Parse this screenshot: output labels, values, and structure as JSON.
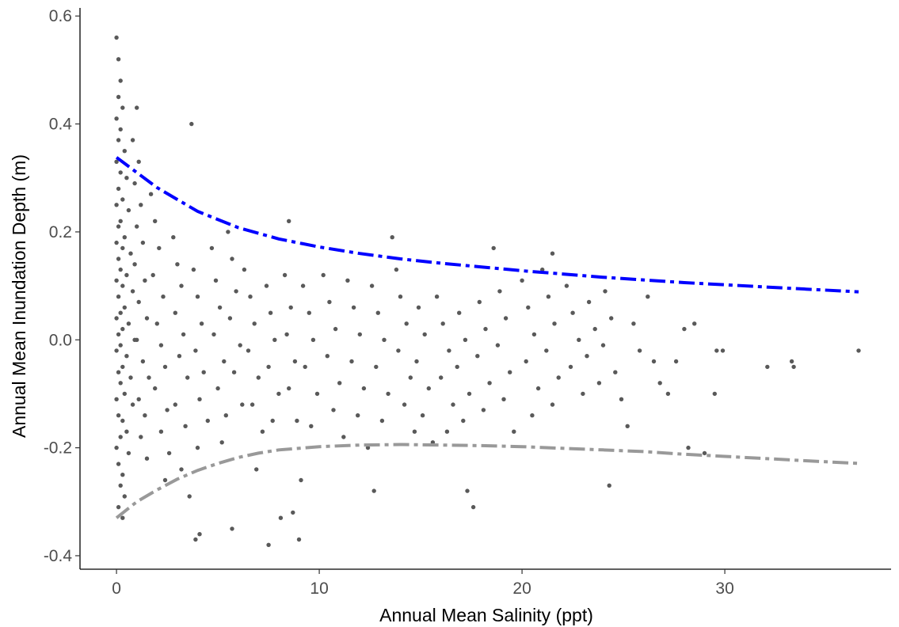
{
  "chart_data": {
    "type": "scatter",
    "xlabel": "Annual Mean Salinity (ppt)",
    "ylabel": "Annual Mean Inundation Depth (m)",
    "xlim": [
      -1.8,
      38.2
    ],
    "ylim": [
      -0.425,
      0.615
    ],
    "x_ticks": [
      0,
      10,
      20,
      30
    ],
    "x_tick_labels": [
      "0",
      "10",
      "20",
      "30"
    ],
    "y_ticks": [
      -0.4,
      -0.2,
      0.0,
      0.2,
      0.4,
      0.6
    ],
    "y_tick_labels": [
      "-0.4",
      "-0.2",
      "0.0",
      "0.2",
      "0.4",
      "0.6"
    ],
    "grid": false,
    "legend": "none",
    "point_color": "#595959",
    "points": [
      [
        0.0,
        0.56
      ],
      [
        0.1,
        0.52
      ],
      [
        0.2,
        0.48
      ],
      [
        0.1,
        0.45
      ],
      [
        0.3,
        0.43
      ],
      [
        0.0,
        0.41
      ],
      [
        0.2,
        0.39
      ],
      [
        0.1,
        0.37
      ],
      [
        0.4,
        0.35
      ],
      [
        0.0,
        0.33
      ],
      [
        0.2,
        0.31
      ],
      [
        0.5,
        0.3
      ],
      [
        0.1,
        0.28
      ],
      [
        0.3,
        0.26
      ],
      [
        0.0,
        0.25
      ],
      [
        0.6,
        0.24
      ],
      [
        0.2,
        0.22
      ],
      [
        0.1,
        0.21
      ],
      [
        0.4,
        0.19
      ],
      [
        0.0,
        0.18
      ],
      [
        0.3,
        0.17
      ],
      [
        0.7,
        0.16
      ],
      [
        0.1,
        0.15
      ],
      [
        0.2,
        0.13
      ],
      [
        0.5,
        0.12
      ],
      [
        0.0,
        0.11
      ],
      [
        0.3,
        0.1
      ],
      [
        0.8,
        0.09
      ],
      [
        0.1,
        0.08
      ],
      [
        0.4,
        0.06
      ],
      [
        0.2,
        0.05
      ],
      [
        0.0,
        0.04
      ],
      [
        0.6,
        0.03
      ],
      [
        0.3,
        0.02
      ],
      [
        0.1,
        0.01
      ],
      [
        0.9,
        0.0
      ],
      [
        0.2,
        -0.01
      ],
      [
        0.0,
        -0.02
      ],
      [
        0.5,
        -0.03
      ],
      [
        0.3,
        -0.05
      ],
      [
        0.1,
        -0.06
      ],
      [
        0.7,
        -0.07
      ],
      [
        0.2,
        -0.08
      ],
      [
        0.4,
        -0.1
      ],
      [
        0.0,
        -0.11
      ],
      [
        0.8,
        -0.12
      ],
      [
        0.1,
        -0.14
      ],
      [
        0.3,
        -0.15
      ],
      [
        0.5,
        -0.17
      ],
      [
        0.2,
        -0.18
      ],
      [
        0.0,
        -0.2
      ],
      [
        0.6,
        -0.21
      ],
      [
        0.1,
        -0.23
      ],
      [
        0.3,
        -0.25
      ],
      [
        0.2,
        -0.27
      ],
      [
        0.4,
        -0.29
      ],
      [
        0.1,
        -0.31
      ],
      [
        0.3,
        -0.33
      ],
      [
        1.0,
        0.43
      ],
      [
        0.8,
        0.37
      ],
      [
        1.1,
        0.33
      ],
      [
        0.9,
        0.29
      ],
      [
        1.2,
        0.25
      ],
      [
        1.0,
        0.21
      ],
      [
        1.3,
        0.18
      ],
      [
        0.9,
        0.14
      ],
      [
        1.4,
        0.11
      ],
      [
        1.1,
        0.07
      ],
      [
        1.5,
        0.04
      ],
      [
        1.0,
        0.0
      ],
      [
        1.3,
        -0.04
      ],
      [
        1.6,
        -0.07
      ],
      [
        1.1,
        -0.11
      ],
      [
        1.4,
        -0.14
      ],
      [
        1.2,
        -0.18
      ],
      [
        1.5,
        -0.22
      ],
      [
        1.7,
        0.27
      ],
      [
        1.9,
        0.22
      ],
      [
        2.1,
        0.17
      ],
      [
        1.8,
        0.12
      ],
      [
        2.3,
        0.08
      ],
      [
        2.0,
        0.03
      ],
      [
        2.2,
        -0.01
      ],
      [
        2.4,
        -0.05
      ],
      [
        1.9,
        -0.09
      ],
      [
        2.5,
        -0.13
      ],
      [
        2.2,
        -0.17
      ],
      [
        2.6,
        -0.21
      ],
      [
        2.4,
        -0.26
      ],
      [
        2.8,
        0.19
      ],
      [
        3.0,
        0.14
      ],
      [
        3.2,
        0.1
      ],
      [
        2.9,
        0.05
      ],
      [
        3.3,
        0.01
      ],
      [
        3.1,
        -0.03
      ],
      [
        3.5,
        -0.07
      ],
      [
        2.9,
        -0.12
      ],
      [
        3.4,
        -0.16
      ],
      [
        3.2,
        -0.24
      ],
      [
        3.6,
        -0.29
      ],
      [
        3.7,
        0.4
      ],
      [
        3.8,
        0.13
      ],
      [
        4.0,
        0.08
      ],
      [
        4.2,
        0.03
      ],
      [
        3.9,
        -0.02
      ],
      [
        4.3,
        -0.06
      ],
      [
        4.1,
        -0.11
      ],
      [
        4.5,
        -0.15
      ],
      [
        4.0,
        -0.2
      ],
      [
        3.9,
        -0.37
      ],
      [
        4.1,
        -0.36
      ],
      [
        4.7,
        0.17
      ],
      [
        4.9,
        0.11
      ],
      [
        5.1,
        0.06
      ],
      [
        4.8,
        0.01
      ],
      [
        5.3,
        -0.04
      ],
      [
        5.0,
        -0.09
      ],
      [
        5.4,
        -0.14
      ],
      [
        5.2,
        -0.19
      ],
      [
        5.5,
        0.2
      ],
      [
        5.7,
        0.15
      ],
      [
        5.9,
        0.09
      ],
      [
        5.6,
        0.04
      ],
      [
        6.1,
        -0.01
      ],
      [
        5.8,
        -0.06
      ],
      [
        6.2,
        -0.12
      ],
      [
        5.7,
        -0.35
      ],
      [
        6.3,
        0.13
      ],
      [
        6.6,
        0.08
      ],
      [
        6.8,
        0.03
      ],
      [
        6.5,
        -0.02
      ],
      [
        7.0,
        -0.07
      ],
      [
        6.7,
        -0.12
      ],
      [
        7.2,
        -0.17
      ],
      [
        6.9,
        -0.24
      ],
      [
        7.4,
        0.1
      ],
      [
        7.6,
        0.05
      ],
      [
        7.8,
        0.0
      ],
      [
        7.5,
        -0.05
      ],
      [
        8.0,
        -0.1
      ],
      [
        7.7,
        -0.15
      ],
      [
        7.5,
        -0.38
      ],
      [
        8.1,
        -0.33
      ],
      [
        8.5,
        0.22
      ],
      [
        8.3,
        0.12
      ],
      [
        8.6,
        0.06
      ],
      [
        8.4,
        0.01
      ],
      [
        8.8,
        -0.04
      ],
      [
        8.5,
        -0.09
      ],
      [
        8.9,
        -0.15
      ],
      [
        8.7,
        -0.32
      ],
      [
        9.0,
        -0.37
      ],
      [
        9.2,
        0.1
      ],
      [
        9.5,
        0.05
      ],
      [
        9.7,
        0.0
      ],
      [
        9.3,
        -0.05
      ],
      [
        9.9,
        -0.1
      ],
      [
        9.6,
        -0.16
      ],
      [
        9.1,
        -0.26
      ],
      [
        10.2,
        0.12
      ],
      [
        10.5,
        0.07
      ],
      [
        10.8,
        0.02
      ],
      [
        10.4,
        -0.03
      ],
      [
        11.0,
        -0.08
      ],
      [
        10.7,
        -0.13
      ],
      [
        11.2,
        -0.18
      ],
      [
        11.4,
        0.11
      ],
      [
        11.7,
        0.06
      ],
      [
        12.0,
        0.01
      ],
      [
        11.6,
        -0.04
      ],
      [
        12.2,
        -0.09
      ],
      [
        11.9,
        -0.14
      ],
      [
        12.4,
        -0.2
      ],
      [
        12.7,
        -0.28
      ],
      [
        12.6,
        0.1
      ],
      [
        12.9,
        0.05
      ],
      [
        13.2,
        0.0
      ],
      [
        12.8,
        -0.05
      ],
      [
        13.4,
        -0.1
      ],
      [
        13.1,
        -0.15
      ],
      [
        13.6,
        0.19
      ],
      [
        13.8,
        0.13
      ],
      [
        14.0,
        0.08
      ],
      [
        14.3,
        0.03
      ],
      [
        13.9,
        -0.02
      ],
      [
        14.5,
        -0.07
      ],
      [
        14.2,
        -0.12
      ],
      [
        14.7,
        -0.17
      ],
      [
        14.9,
        0.06
      ],
      [
        15.2,
        0.01
      ],
      [
        14.8,
        -0.04
      ],
      [
        15.4,
        -0.09
      ],
      [
        15.1,
        -0.14
      ],
      [
        15.6,
        -0.19
      ],
      [
        15.8,
        0.08
      ],
      [
        16.1,
        0.03
      ],
      [
        16.4,
        -0.02
      ],
      [
        16.0,
        -0.07
      ],
      [
        16.6,
        -0.12
      ],
      [
        16.3,
        -0.17
      ],
      [
        16.9,
        0.05
      ],
      [
        17.2,
        0.0
      ],
      [
        16.8,
        -0.05
      ],
      [
        17.4,
        -0.1
      ],
      [
        17.1,
        -0.15
      ],
      [
        17.3,
        -0.28
      ],
      [
        17.6,
        -0.31
      ],
      [
        17.9,
        0.07
      ],
      [
        18.2,
        0.02
      ],
      [
        17.8,
        -0.03
      ],
      [
        18.4,
        -0.08
      ],
      [
        18.1,
        -0.13
      ],
      [
        18.6,
        0.17
      ],
      [
        18.9,
        0.09
      ],
      [
        19.2,
        0.04
      ],
      [
        18.8,
        -0.01
      ],
      [
        19.4,
        -0.06
      ],
      [
        19.1,
        -0.11
      ],
      [
        19.6,
        -0.17
      ],
      [
        20.0,
        0.11
      ],
      [
        20.3,
        0.06
      ],
      [
        20.6,
        0.01
      ],
      [
        20.2,
        -0.04
      ],
      [
        20.8,
        -0.09
      ],
      [
        20.5,
        -0.14
      ],
      [
        21.0,
        0.13
      ],
      [
        21.3,
        0.08
      ],
      [
        21.6,
        0.03
      ],
      [
        21.2,
        -0.02
      ],
      [
        21.8,
        -0.07
      ],
      [
        21.5,
        -0.12
      ],
      [
        21.5,
        0.16
      ],
      [
        22.2,
        0.1
      ],
      [
        22.5,
        0.05
      ],
      [
        22.8,
        0.0
      ],
      [
        22.4,
        -0.05
      ],
      [
        23.0,
        -0.1
      ],
      [
        23.3,
        0.07
      ],
      [
        23.6,
        0.02
      ],
      [
        23.2,
        -0.03
      ],
      [
        23.8,
        -0.08
      ],
      [
        24.1,
        0.09
      ],
      [
        24.4,
        0.04
      ],
      [
        24.0,
        -0.01
      ],
      [
        24.6,
        -0.06
      ],
      [
        24.3,
        -0.27
      ],
      [
        24.9,
        -0.11
      ],
      [
        25.2,
        -0.16
      ],
      [
        25.5,
        0.03
      ],
      [
        25.8,
        -0.02
      ],
      [
        26.2,
        0.08
      ],
      [
        26.5,
        -0.04
      ],
      [
        26.8,
        -0.08
      ],
      [
        27.2,
        -0.1
      ],
      [
        27.6,
        -0.04
      ],
      [
        28.0,
        0.02
      ],
      [
        28.5,
        0.03
      ],
      [
        28.2,
        -0.2
      ],
      [
        29.0,
        -0.21
      ],
      [
        29.6,
        -0.02
      ],
      [
        29.5,
        -0.1
      ],
      [
        29.9,
        -0.02
      ],
      [
        32.1,
        -0.05
      ],
      [
        33.3,
        -0.04
      ],
      [
        33.4,
        -0.05
      ],
      [
        36.6,
        -0.02
      ]
    ],
    "lines": [
      {
        "color": "#0000ff",
        "points": [
          [
            0.0,
            0.338
          ],
          [
            2,
            0.282
          ],
          [
            4,
            0.238
          ],
          [
            6,
            0.208
          ],
          [
            8,
            0.187
          ],
          [
            10,
            0.172
          ],
          [
            12,
            0.16
          ],
          [
            14,
            0.15
          ],
          [
            16,
            0.142
          ],
          [
            18,
            0.135
          ],
          [
            20,
            0.128
          ],
          [
            22,
            0.122
          ],
          [
            24,
            0.116
          ],
          [
            26,
            0.111
          ],
          [
            28,
            0.106
          ],
          [
            30,
            0.102
          ],
          [
            32,
            0.098
          ],
          [
            34,
            0.094
          ],
          [
            36.6,
            0.089
          ]
        ]
      },
      {
        "color": "#999999",
        "points": [
          [
            0.0,
            -0.33
          ],
          [
            1,
            -0.3
          ],
          [
            2,
            -0.278
          ],
          [
            3,
            -0.258
          ],
          [
            4,
            -0.242
          ],
          [
            5,
            -0.229
          ],
          [
            6,
            -0.218
          ],
          [
            7,
            -0.21
          ],
          [
            8,
            -0.204
          ],
          [
            10,
            -0.198
          ],
          [
            12,
            -0.195
          ],
          [
            14,
            -0.194
          ],
          [
            16,
            -0.195
          ],
          [
            18,
            -0.196
          ],
          [
            20,
            -0.198
          ],
          [
            22,
            -0.201
          ],
          [
            24,
            -0.204
          ],
          [
            26,
            -0.207
          ],
          [
            28,
            -0.212
          ],
          [
            30,
            -0.216
          ],
          [
            32,
            -0.22
          ],
          [
            34,
            -0.224
          ],
          [
            36.6,
            -0.229
          ]
        ]
      }
    ]
  }
}
